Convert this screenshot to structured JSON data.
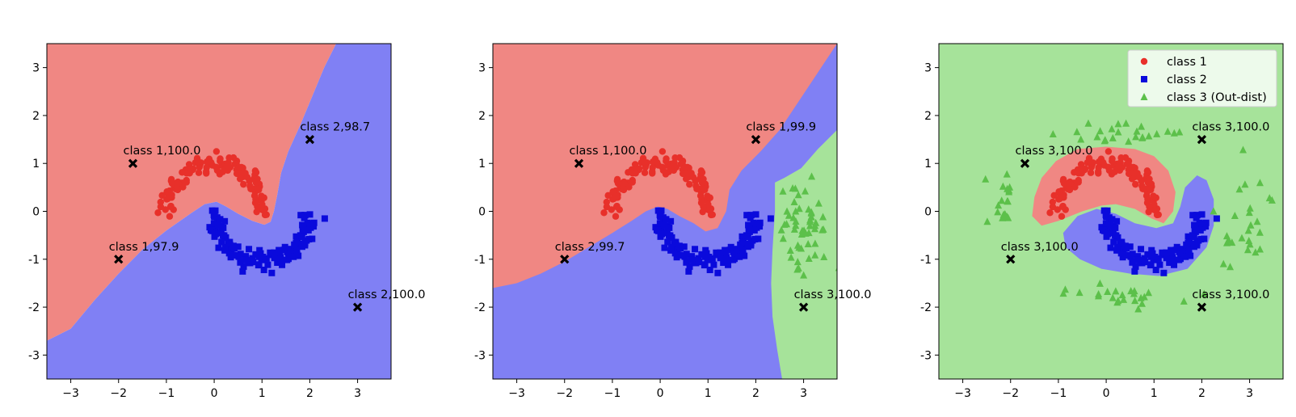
{
  "chart_data": [
    {
      "type": "scatter",
      "xlim": [
        -3.5,
        3.7
      ],
      "ylim": [
        -3.5,
        3.5
      ],
      "xticks": [
        -3,
        -2,
        -1,
        0,
        1,
        2,
        3
      ],
      "yticks": [
        -3,
        -2,
        -1,
        0,
        1,
        2,
        3
      ],
      "grid": false,
      "regions": [
        {
          "class": "class 1",
          "color": "#f08783",
          "polygon": [
            [
              -3.5,
              3.5
            ],
            [
              2.55,
              3.5
            ],
            [
              2.3,
              3.0
            ],
            [
              2.05,
              2.4
            ],
            [
              1.8,
              1.8
            ],
            [
              1.55,
              1.25
            ],
            [
              1.4,
              0.8
            ],
            [
              1.32,
              0.35
            ],
            [
              1.25,
              0.0
            ],
            [
              1.18,
              -0.22
            ],
            [
              1.05,
              -0.28
            ],
            [
              0.8,
              -0.2
            ],
            [
              0.5,
              -0.05
            ],
            [
              0.25,
              0.1
            ],
            [
              0.05,
              0.2
            ],
            [
              -0.2,
              0.15
            ],
            [
              -0.5,
              -0.05
            ],
            [
              -1.0,
              -0.4
            ],
            [
              -1.5,
              -0.8
            ],
            [
              -2.0,
              -1.3
            ],
            [
              -2.5,
              -1.85
            ],
            [
              -3.0,
              -2.45
            ],
            [
              -3.5,
              -2.7
            ]
          ]
        },
        {
          "class": "class 2",
          "color": "#8080f4",
          "polygon": [
            [
              2.55,
              3.5
            ],
            [
              3.7,
              3.5
            ],
            [
              3.7,
              -3.5
            ],
            [
              -3.5,
              -3.5
            ],
            [
              -3.5,
              -2.7
            ],
            [
              -3.0,
              -2.45
            ],
            [
              -2.5,
              -1.85
            ],
            [
              -2.0,
              -1.3
            ],
            [
              -1.5,
              -0.8
            ],
            [
              -1.0,
              -0.4
            ],
            [
              -0.5,
              -0.05
            ],
            [
              -0.2,
              0.15
            ],
            [
              0.05,
              0.2
            ],
            [
              0.25,
              0.1
            ],
            [
              0.5,
              -0.05
            ],
            [
              0.8,
              -0.2
            ],
            [
              1.05,
              -0.28
            ],
            [
              1.18,
              -0.22
            ],
            [
              1.25,
              0.0
            ],
            [
              1.32,
              0.35
            ],
            [
              1.4,
              0.8
            ],
            [
              1.55,
              1.25
            ],
            [
              1.8,
              1.8
            ],
            [
              2.05,
              2.4
            ],
            [
              2.3,
              3.0
            ]
          ]
        }
      ],
      "moons": [
        {
          "class": "class 1",
          "color": "#e8302a",
          "marker": "circle"
        },
        {
          "class": "class 2",
          "color": "#0a0adc",
          "marker": "square"
        }
      ],
      "annotations": [
        {
          "x": -1.7,
          "y": 1.0,
          "label": "class 1,100.0"
        },
        {
          "x": 2.0,
          "y": 1.5,
          "label": "class 2,98.7"
        },
        {
          "x": -2.0,
          "y": -1.0,
          "label": "class 1,97.9"
        },
        {
          "x": 3.0,
          "y": -2.0,
          "label": "class 2,100.0"
        }
      ]
    },
    {
      "type": "scatter",
      "xlim": [
        -3.5,
        3.7
      ],
      "ylim": [
        -3.5,
        3.5
      ],
      "xticks": [
        -3,
        -2,
        -1,
        0,
        1,
        2,
        3
      ],
      "yticks": [
        -3,
        -2,
        -1,
        0,
        1,
        2,
        3
      ],
      "grid": false,
      "regions": [
        {
          "class": "class 2",
          "color": "#8080f4",
          "polygon": [
            [
              -3.5,
              3.5
            ],
            [
              3.7,
              3.5
            ],
            [
              3.7,
              -3.5
            ],
            [
              -3.5,
              -3.5
            ]
          ]
        },
        {
          "class": "class 1",
          "color": "#f08783",
          "polygon": [
            [
              -3.5,
              3.5
            ],
            [
              3.7,
              3.5
            ],
            [
              3.3,
              2.9
            ],
            [
              2.9,
              2.3
            ],
            [
              2.5,
              1.7
            ],
            [
              2.1,
              1.25
            ],
            [
              1.7,
              0.85
            ],
            [
              1.45,
              0.45
            ],
            [
              1.38,
              0.0
            ],
            [
              1.2,
              -0.35
            ],
            [
              0.95,
              -0.42
            ],
            [
              0.7,
              -0.25
            ],
            [
              0.4,
              -0.1
            ],
            [
              0.15,
              0.05
            ],
            [
              -0.05,
              0.1
            ],
            [
              -0.3,
              0.0
            ],
            [
              -0.6,
              -0.2
            ],
            [
              -1.0,
              -0.45
            ],
            [
              -1.5,
              -0.75
            ],
            [
              -2.0,
              -1.05
            ],
            [
              -2.5,
              -1.3
            ],
            [
              -3.0,
              -1.5
            ],
            [
              -3.5,
              -1.6
            ]
          ]
        },
        {
          "class": "class 3",
          "color": "#a6e39a",
          "polygon": [
            [
              3.7,
              1.7
            ],
            [
              3.3,
              1.3
            ],
            [
              2.95,
              0.9
            ],
            [
              2.6,
              0.7
            ],
            [
              2.4,
              0.6
            ],
            [
              2.4,
              0.0
            ],
            [
              2.35,
              -0.8
            ],
            [
              2.32,
              -1.5
            ],
            [
              2.35,
              -2.2
            ],
            [
              2.45,
              -2.9
            ],
            [
              2.55,
              -3.5
            ],
            [
              3.7,
              -3.5
            ]
          ]
        }
      ],
      "moons": [
        {
          "class": "class 1",
          "color": "#e8302a",
          "marker": "circle"
        },
        {
          "class": "class 2",
          "color": "#0a0adc",
          "marker": "square"
        }
      ],
      "cluster": {
        "class": "class 3",
        "color": "#5cc04a",
        "marker": "triangle",
        "cx": 2.95,
        "cy": -0.3,
        "sx": 0.25,
        "sy": 0.45
      },
      "annotations": [
        {
          "x": -1.7,
          "y": 1.0,
          "label": "class 1,100.0"
        },
        {
          "x": 2.0,
          "y": 1.5,
          "label": "class 1,99.9"
        },
        {
          "x": -2.0,
          "y": -1.0,
          "label": "class 2,99.7"
        },
        {
          "x": 3.0,
          "y": -2.0,
          "label": "class 3,100.0"
        }
      ]
    },
    {
      "type": "scatter",
      "xlim": [
        -3.5,
        3.7
      ],
      "ylim": [
        -3.5,
        3.5
      ],
      "xticks": [
        -3,
        -2,
        -1,
        0,
        1,
        2,
        3
      ],
      "yticks": [
        -3,
        -2,
        -1,
        0,
        1,
        2,
        3
      ],
      "grid": false,
      "regions": [
        {
          "class": "class 3",
          "color": "#a6e39a",
          "polygon": [
            [
              -3.5,
              3.5
            ],
            [
              3.7,
              3.5
            ],
            [
              3.7,
              -3.5
            ],
            [
              -3.5,
              -3.5
            ]
          ]
        },
        {
          "class": "class 1",
          "color": "#f08783",
          "polygon": [
            [
              -1.55,
              -0.1
            ],
            [
              -1.5,
              0.3
            ],
            [
              -1.35,
              0.7
            ],
            [
              -1.05,
              1.05
            ],
            [
              -0.6,
              1.3
            ],
            [
              0.0,
              1.35
            ],
            [
              0.6,
              1.3
            ],
            [
              1.0,
              1.15
            ],
            [
              1.3,
              0.85
            ],
            [
              1.45,
              0.4
            ],
            [
              1.4,
              0.0
            ],
            [
              1.2,
              -0.25
            ],
            [
              0.95,
              -0.15
            ],
            [
              0.6,
              0.05
            ],
            [
              0.2,
              0.15
            ],
            [
              -0.1,
              0.12
            ],
            [
              -0.5,
              0.0
            ],
            [
              -1.0,
              -0.2
            ],
            [
              -1.35,
              -0.3
            ]
          ]
        },
        {
          "class": "class 2",
          "color": "#8080f4",
          "polygon": [
            [
              -0.9,
              -0.45
            ],
            [
              -0.6,
              -0.1
            ],
            [
              -0.2,
              0.05
            ],
            [
              0.2,
              -0.05
            ],
            [
              0.6,
              -0.25
            ],
            [
              1.05,
              -0.35
            ],
            [
              1.4,
              -0.25
            ],
            [
              1.55,
              0.1
            ],
            [
              1.65,
              0.5
            ],
            [
              1.9,
              0.75
            ],
            [
              2.1,
              0.65
            ],
            [
              2.25,
              0.25
            ],
            [
              2.25,
              -0.3
            ],
            [
              2.1,
              -0.75
            ],
            [
              1.7,
              -1.2
            ],
            [
              1.1,
              -1.35
            ],
            [
              0.5,
              -1.3
            ],
            [
              -0.1,
              -1.2
            ],
            [
              -0.55,
              -1.0
            ],
            [
              -0.85,
              -0.75
            ]
          ]
        }
      ],
      "moons": [
        {
          "class": "class 1",
          "color": "#e8302a",
          "marker": "circle"
        },
        {
          "class": "class 2",
          "color": "#0a0adc",
          "marker": "square"
        }
      ],
      "ood": {
        "class": "class 3 (Out-dist)",
        "color": "#5cc04a",
        "marker": "triangle"
      },
      "annotations": [
        {
          "x": -1.7,
          "y": 1.0,
          "label": "class 3,100.0"
        },
        {
          "x": 2.0,
          "y": 1.5,
          "label": "class 3,100.0"
        },
        {
          "x": -2.0,
          "y": -1.0,
          "label": "class 3,100.0"
        },
        {
          "x": 2.0,
          "y": -2.0,
          "label": "class 3,100.0"
        }
      ],
      "legend": {
        "placement": "upper right",
        "entries": [
          {
            "label": "class 1",
            "marker": "circle",
            "color": "#e8302a"
          },
          {
            "label": "class 2",
            "marker": "square",
            "color": "#0a0adc"
          },
          {
            "label": "class 3 (Out-dist)",
            "marker": "triangle",
            "color": "#5cc04a"
          }
        ]
      }
    }
  ]
}
